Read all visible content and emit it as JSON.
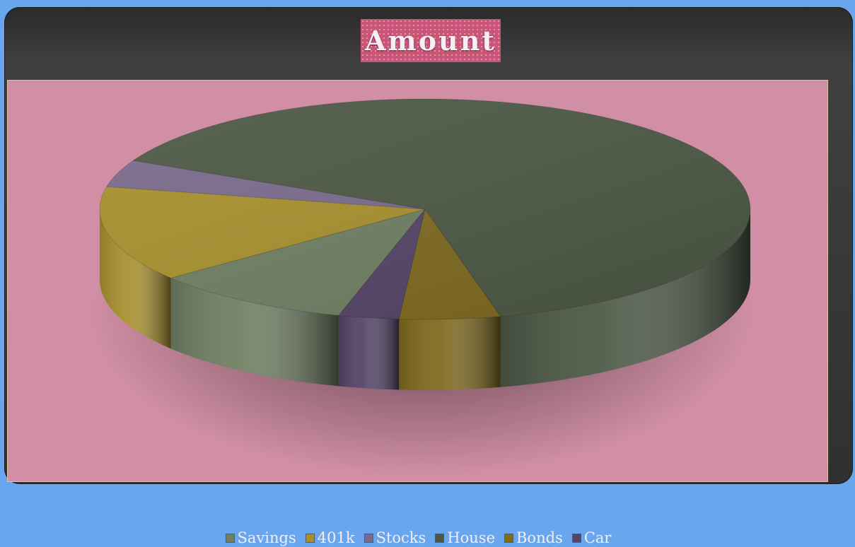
{
  "chart_data": {
    "type": "pie",
    "title": "Amount",
    "categories": [
      "Savings",
      "401k",
      "Stocks",
      "House",
      "Bonds",
      "Car"
    ],
    "values": [
      10,
      14,
      4,
      64,
      5,
      3
    ],
    "legend_position": "bottom"
  },
  "colors": {
    "Savings": "#6f7f62",
    "401k": "#a8902e",
    "Stocks": "#7a6a8c",
    "House": "#4c5845",
    "Bonds": "#7f6a1f",
    "Car": "#544468",
    "background": "#d08fa4",
    "title_bg": "#c9557f"
  }
}
